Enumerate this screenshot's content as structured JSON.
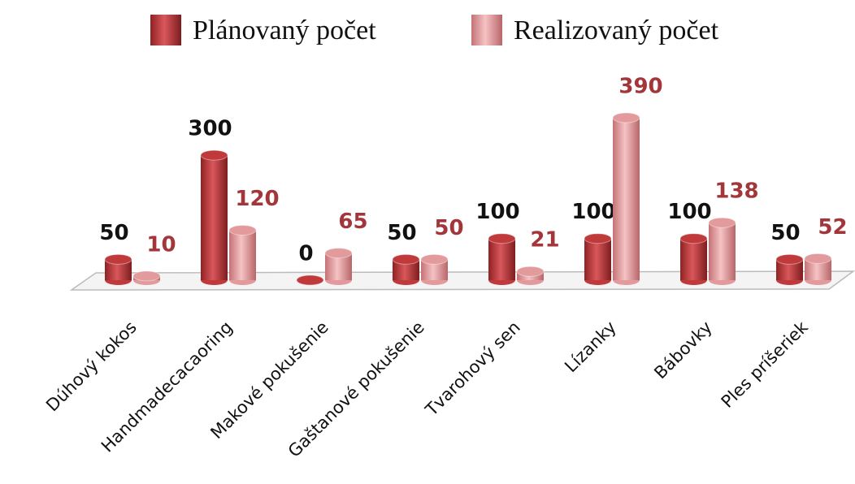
{
  "chart_data": {
    "type": "bar",
    "categories": [
      "Dúhový kokos",
      "Handmadecacaoring",
      "Makové pokušenie",
      "Gaštanové pokušenie",
      "Tvarohový sen",
      "Lízanky",
      "Bábovky",
      "Ples príšeriek"
    ],
    "series": [
      {
        "name": "Plánovaný počet",
        "color": "#c0393b",
        "values": [
          50,
          300,
          0,
          50,
          100,
          100,
          100,
          50
        ]
      },
      {
        "name": "Realizovaný počet",
        "color": "#e39a9d",
        "values": [
          10,
          120,
          65,
          50,
          21,
          390,
          138,
          52
        ]
      }
    ]
  }
}
